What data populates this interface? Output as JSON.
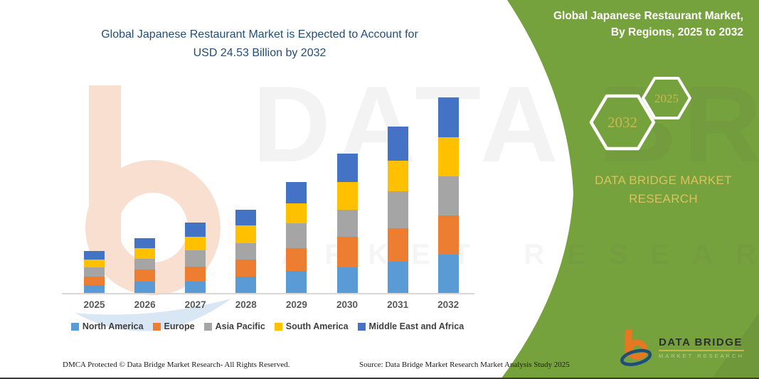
{
  "title": {
    "line1": "Global Japanese Restaurant Market is Expected to Account for",
    "line2": "USD 24.53 Billion by 2032"
  },
  "side_panel": {
    "color": "#76A23E",
    "title_line1": "Global Japanese Restaurant Market,",
    "title_line2": "By Regions, 2025 to 2032",
    "hexagons": {
      "back_year": "2032",
      "front_year": "2025"
    },
    "brand_caption": "DATA BRIDGE MARKET RESEARCH"
  },
  "logo": {
    "title": "DATA BRIDGE",
    "subtitle": "MARKET RESEARCH"
  },
  "watermark": {
    "line1": "DATA BRIDGE",
    "line2": "MARKET RESEARCH"
  },
  "footer": {
    "dmca": "DMCA Protected © Data Bridge Market Research-  All Rights Reserved.",
    "source": "Source: Data Bridge Market Research  Market Analysis Study 2025"
  },
  "chart_data": {
    "type": "bar",
    "stacked": true,
    "title": "Global Japanese Restaurant Market is Expected to Account for USD 24.53 Billion by 2032",
    "unit": "USD Billion",
    "categories": [
      "2025",
      "2026",
      "2027",
      "2028",
      "2029",
      "2030",
      "2031",
      "2032"
    ],
    "series": [
      {
        "name": "North America",
        "color": "#5B9BD5",
        "values": [
          1.07,
          1.51,
          1.51,
          2.13,
          2.84,
          3.29,
          4.0,
          4.89
        ]
      },
      {
        "name": "Europe",
        "color": "#ED7D31",
        "values": [
          1.07,
          1.51,
          1.87,
          2.13,
          2.84,
          3.82,
          4.18,
          4.89
        ]
      },
      {
        "name": "Asia Pacific",
        "color": "#A5A5A5",
        "values": [
          1.16,
          1.33,
          2.04,
          2.04,
          3.11,
          3.38,
          4.62,
          4.89
        ]
      },
      {
        "name": "South America",
        "color": "#FFC000",
        "values": [
          0.98,
          1.33,
          1.69,
          2.22,
          2.49,
          3.47,
          3.82,
          4.89
        ]
      },
      {
        "name": "Middle East and Africa",
        "color": "#4472C4",
        "values": [
          1.07,
          1.24,
          1.78,
          1.96,
          2.67,
          3.56,
          4.27,
          4.98
        ]
      }
    ],
    "totals": [
      5.35,
      6.92,
      8.89,
      10.48,
      13.95,
      17.52,
      20.89,
      24.53
    ],
    "ylim": [
      0,
      25
    ],
    "grid": false,
    "y_axis_hidden": true,
    "legend_position": "bottom"
  }
}
